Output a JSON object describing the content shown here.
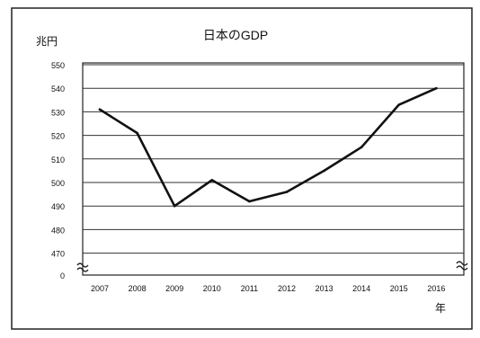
{
  "chart_data": {
    "type": "line",
    "title": "日本のGDP",
    "ylabel": "兆円",
    "xlabel": "年",
    "x": [
      "2007",
      "2008",
      "2009",
      "2010",
      "2011",
      "2012",
      "2013",
      "2014",
      "2015",
      "2016"
    ],
    "series": [
      {
        "values": [
          531,
          521,
          490,
          501,
          492,
          496,
          505,
          515,
          533,
          540
        ]
      }
    ],
    "y_ticks": [
      "550",
      "540",
      "530",
      "520",
      "510",
      "500",
      "490",
      "480",
      "470",
      "0"
    ],
    "ylim": [
      470,
      550
    ],
    "y_axis_break": true,
    "grid": true,
    "legend": false,
    "colors": {
      "line": "#111111",
      "grid": "#333333",
      "frame": "#222222"
    }
  }
}
